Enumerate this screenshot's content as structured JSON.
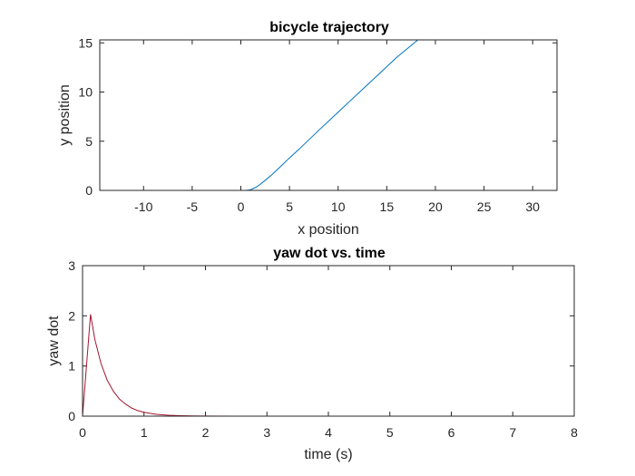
{
  "chart_data": [
    {
      "type": "line",
      "title": "bicycle trajectory",
      "xlabel": "x position",
      "ylabel": "y position",
      "xlim": [
        -14.5,
        32.5
      ],
      "ylim": [
        0,
        15.3
      ],
      "xticks": [
        -10,
        -5,
        0,
        5,
        10,
        15,
        20,
        25,
        30
      ],
      "yticks": [
        0,
        5,
        10,
        15
      ],
      "grid": false,
      "series": [
        {
          "color": "#0072BD",
          "x": [
            0.3,
            0.6,
            0.9,
            1.2,
            1.6,
            2.0,
            2.6,
            3.2,
            4.0,
            5.0,
            6.0,
            8.0,
            10.0,
            12.0,
            14.0,
            16.0,
            18.2
          ],
          "y": [
            0.0,
            0.01,
            0.05,
            0.15,
            0.35,
            0.62,
            1.1,
            1.6,
            2.35,
            3.3,
            4.2,
            6.1,
            7.95,
            9.8,
            11.65,
            13.5,
            15.3
          ]
        }
      ]
    },
    {
      "type": "line",
      "title": "yaw dot vs. time",
      "xlabel": "time (s)",
      "ylabel": "yaw dot",
      "xlim": [
        0,
        8
      ],
      "ylim": [
        0,
        3
      ],
      "xticks": [
        0,
        1,
        2,
        3,
        4,
        5,
        6,
        7,
        8
      ],
      "yticks": [
        0,
        1,
        2,
        3
      ],
      "grid": false,
      "series": [
        {
          "color": "#A2142F",
          "x": [
            0,
            0.13,
            0.2,
            0.3,
            0.4,
            0.5,
            0.6,
            0.7,
            0.8,
            0.9,
            1.0,
            1.2,
            1.4,
            1.6,
            1.8,
            2.0,
            2.5,
            3.0,
            4.0,
            5.0,
            6.0,
            7.0,
            8.0
          ],
          "y": [
            0,
            2.03,
            1.53,
            1.05,
            0.72,
            0.5,
            0.34,
            0.24,
            0.16,
            0.11,
            0.077,
            0.037,
            0.017,
            0.008,
            0.004,
            0.002,
            0.0,
            0.0,
            0.0,
            0.0,
            0.0,
            0.0,
            0.0
          ]
        },
        {
          "color": "#0072BD",
          "x": [
            0,
            8
          ],
          "y": [
            0,
            0
          ]
        }
      ]
    }
  ]
}
